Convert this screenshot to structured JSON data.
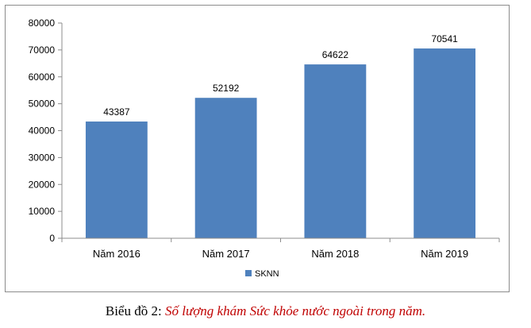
{
  "chart_data": {
    "type": "bar",
    "categories": [
      "Năm 2016",
      "Năm 2017",
      "Năm 2018",
      "Năm 2019"
    ],
    "series": [
      {
        "name": "SKNN",
        "values": [
          43387,
          52192,
          64622,
          70541
        ],
        "color": "#4f81bd"
      }
    ],
    "y_ticks": [
      "0",
      "10000",
      "20000",
      "30000",
      "40000",
      "50000",
      "60000",
      "70000",
      "80000"
    ],
    "ylim": [
      0,
      80000
    ],
    "grid": false,
    "legend_position": "bottom",
    "data_labels": true
  },
  "caption": {
    "prefix": "Biểu đồ 2: ",
    "title": "Số lượng khám Sức khỏe nước ngoài trong năm."
  }
}
